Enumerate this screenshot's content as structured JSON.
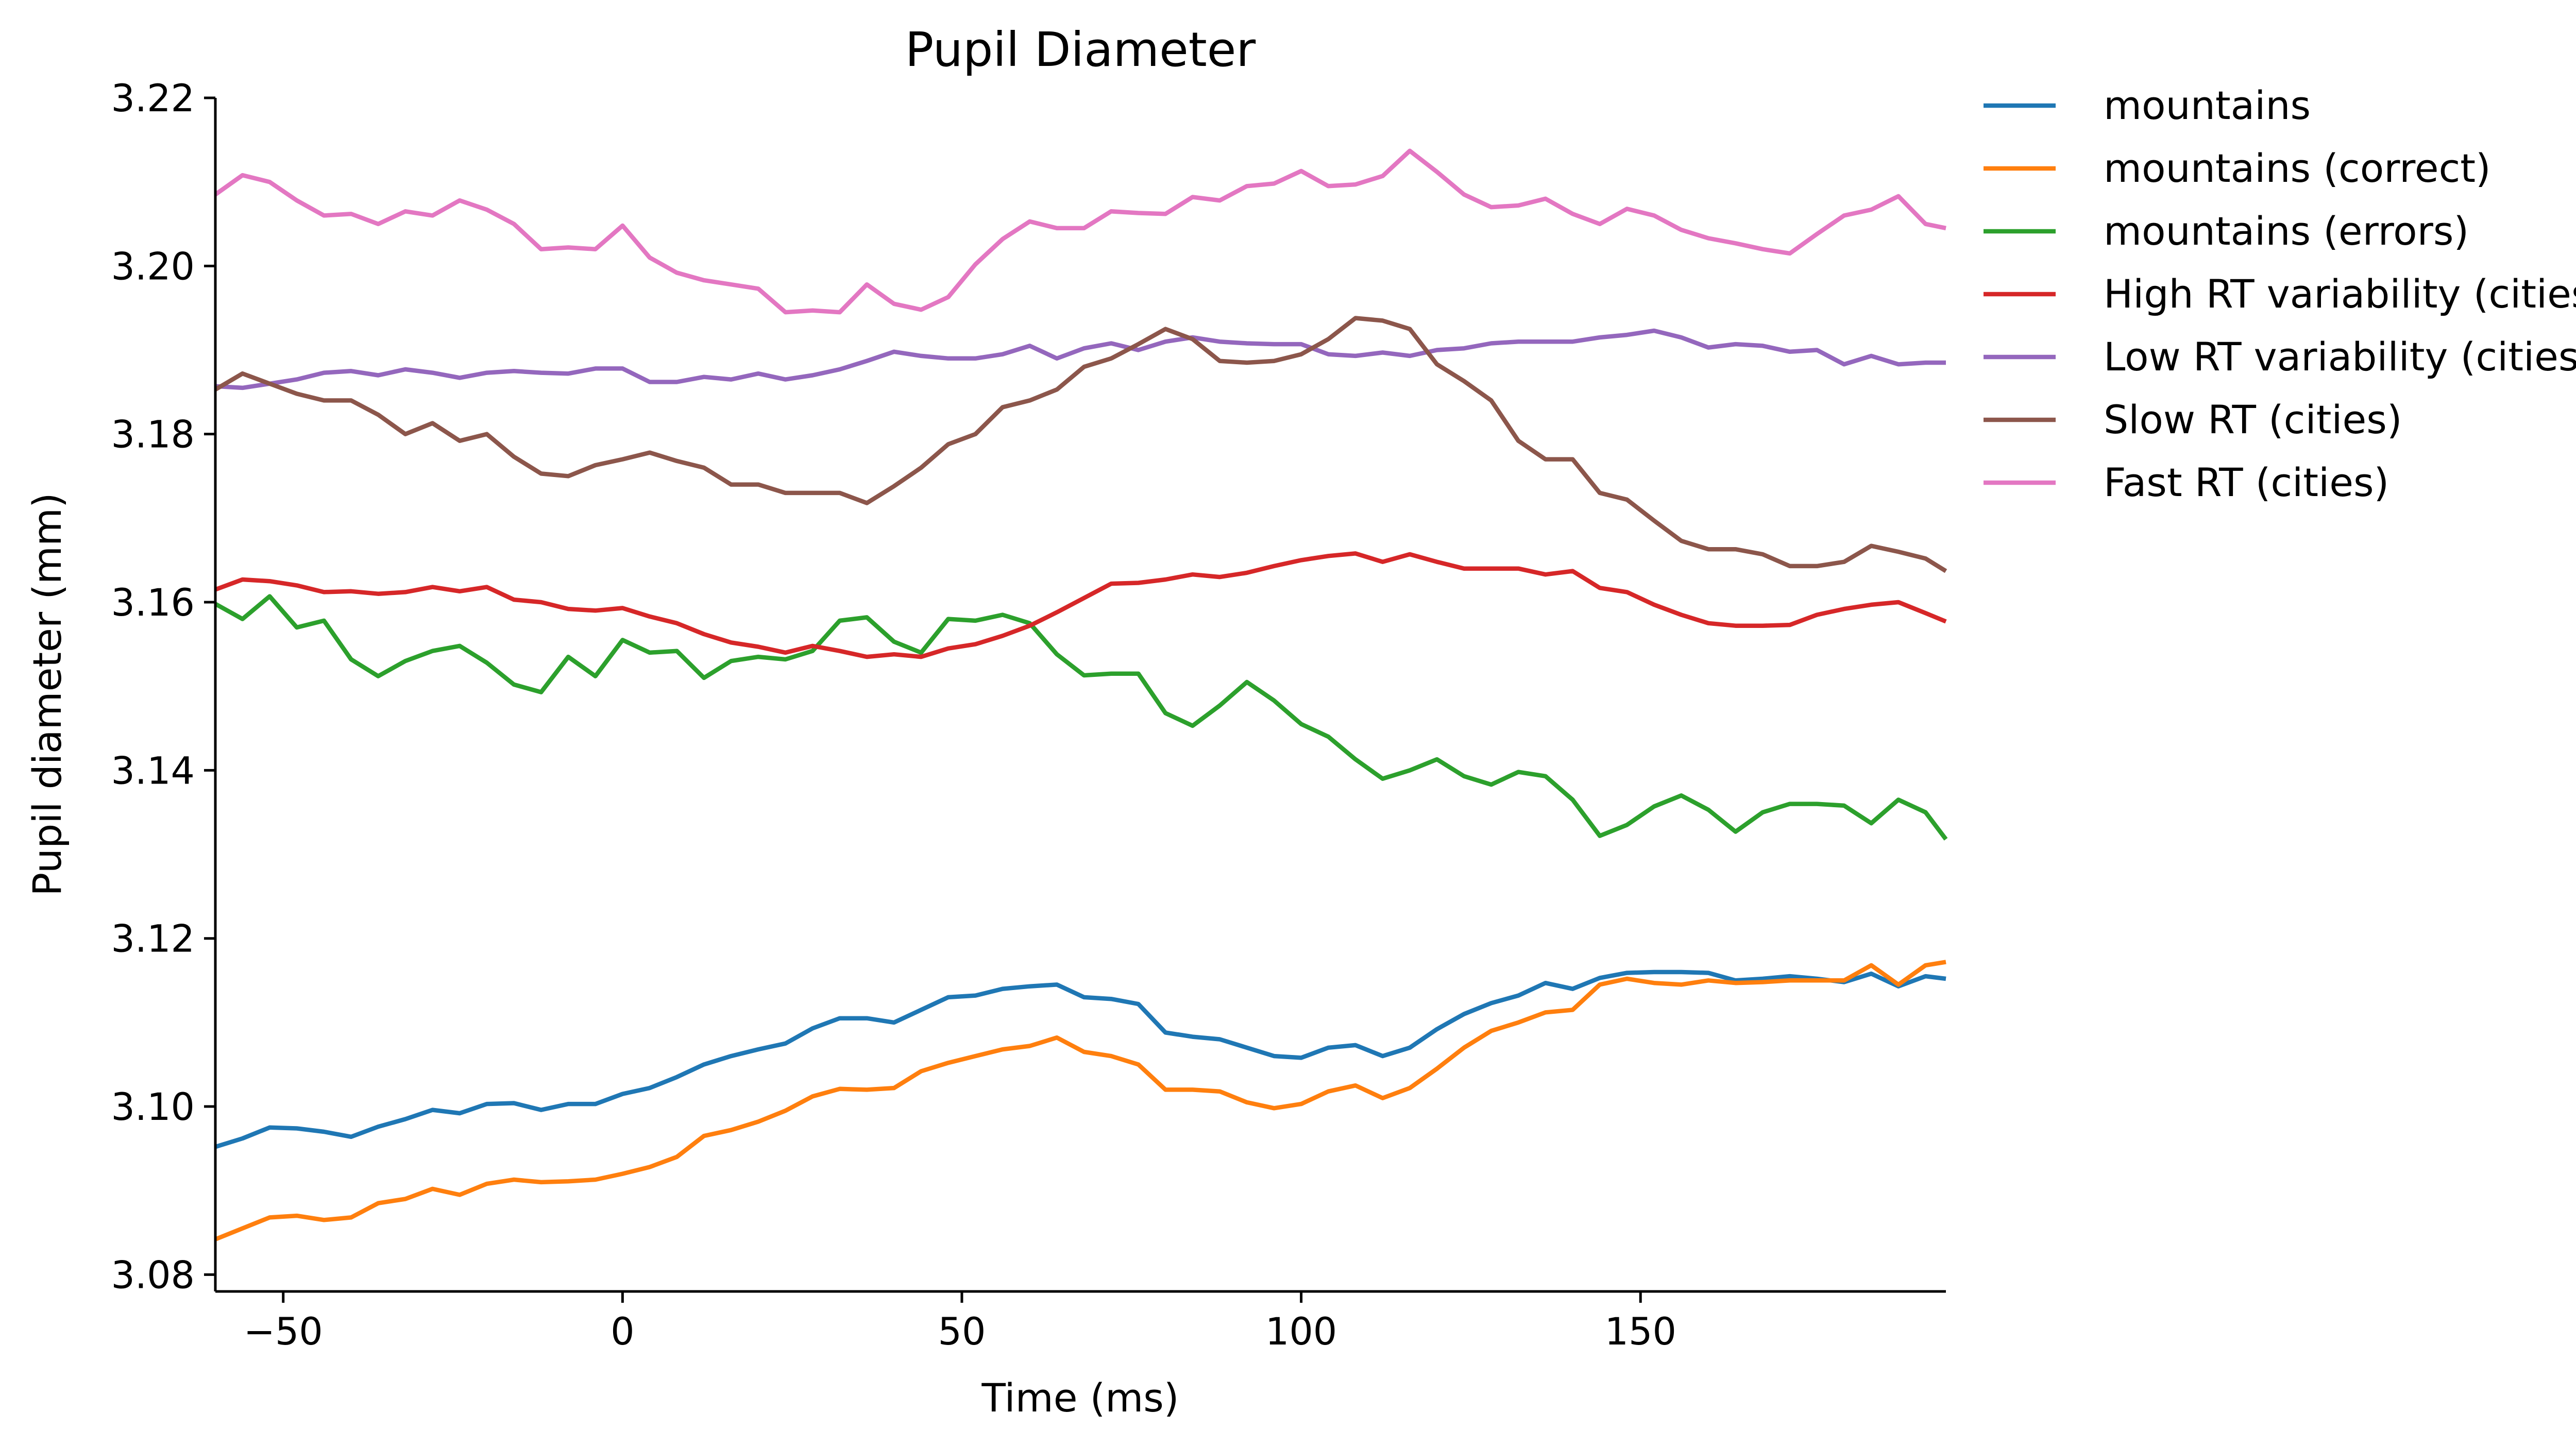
{
  "chart_data": {
    "type": "line",
    "title": "Pupil Diameter",
    "xlabel": "Time (ms)",
    "ylabel": "Pupil diameter (mm)",
    "xlim": [
      -60,
      195
    ],
    "ylim": [
      3.078,
      3.22
    ],
    "xticks": [
      -50,
      0,
      50,
      100,
      150
    ],
    "xtick_labels": [
      "−50",
      "0",
      "50",
      "100",
      "150"
    ],
    "yticks": [
      3.08,
      3.1,
      3.12,
      3.14,
      3.16,
      3.18,
      3.2,
      3.22
    ],
    "ytick_labels": [
      "3.08",
      "3.10",
      "3.12",
      "3.14",
      "3.16",
      "3.18",
      "3.20",
      "3.22"
    ],
    "grid": false,
    "legend_position": "outside-right",
    "x": [
      -60,
      -56,
      -52,
      -48,
      -44,
      -40,
      -36,
      -32,
      -28,
      -24,
      -20,
      -16,
      -12,
      -8,
      -4,
      0,
      4,
      8,
      12,
      16,
      20,
      24,
      28,
      32,
      36,
      40,
      44,
      48,
      52,
      56,
      60,
      64,
      68,
      72,
      76,
      80,
      84,
      88,
      92,
      96,
      100,
      104,
      108,
      112,
      116,
      120,
      124,
      128,
      132,
      136,
      140,
      144,
      148,
      152,
      156,
      160,
      164,
      168,
      172,
      176,
      180,
      184,
      188,
      192,
      196
    ],
    "series": [
      {
        "name": "mountains",
        "color": "#1f77b4",
        "values": [
          3.0952,
          3.0962,
          3.0975,
          3.0974,
          3.097,
          3.0964,
          3.0976,
          3.0985,
          3.0996,
          3.0992,
          3.1003,
          3.1004,
          3.0996,
          3.1003,
          3.1003,
          3.1015,
          3.1022,
          3.1035,
          3.105,
          3.106,
          3.1068,
          3.1075,
          3.1093,
          3.1105,
          3.1105,
          3.11,
          3.1115,
          3.113,
          3.1132,
          3.114,
          3.1143,
          3.1145,
          3.113,
          3.1128,
          3.1122,
          3.1088,
          3.1083,
          3.108,
          3.107,
          3.106,
          3.1058,
          3.107,
          3.1073,
          3.106,
          3.107,
          3.1092,
          3.111,
          3.1123,
          3.1132,
          3.1147,
          3.114,
          3.1153,
          3.1159,
          3.116,
          3.116,
          3.1159,
          3.115,
          3.1152,
          3.1155,
          3.1152,
          3.1148,
          3.1158,
          3.1143,
          3.1155,
          3.1152
        ]
      },
      {
        "name": "mountains (correct)",
        "color": "#ff7f0e",
        "values": [
          3.0842,
          3.0855,
          3.0868,
          3.087,
          3.0865,
          3.0868,
          3.0885,
          3.089,
          3.0902,
          3.0895,
          3.0908,
          3.0913,
          3.091,
          3.0911,
          3.0913,
          3.092,
          3.0928,
          3.094,
          3.0965,
          3.0972,
          3.0982,
          3.0995,
          3.1012,
          3.1021,
          3.102,
          3.1022,
          3.1042,
          3.1052,
          3.106,
          3.1068,
          3.1072,
          3.1082,
          3.1065,
          3.106,
          3.105,
          3.102,
          3.102,
          3.1018,
          3.1005,
          3.0998,
          3.1003,
          3.1018,
          3.1025,
          3.101,
          3.1022,
          3.1045,
          3.107,
          3.109,
          3.11,
          3.1112,
          3.1115,
          3.1145,
          3.1152,
          3.1147,
          3.1145,
          3.115,
          3.1147,
          3.1148,
          3.115,
          3.115,
          3.115,
          3.1168,
          3.1145,
          3.1168,
          3.1172
        ]
      },
      {
        "name": "mountains (errors)",
        "color": "#2ca02c",
        "values": [
          3.1598,
          3.158,
          3.1607,
          3.157,
          3.1578,
          3.1532,
          3.1512,
          3.153,
          3.1542,
          3.1548,
          3.1528,
          3.1502,
          3.1493,
          3.1535,
          3.1512,
          3.1555,
          3.154,
          3.1542,
          3.151,
          3.153,
          3.1535,
          3.1532,
          3.1542,
          3.1578,
          3.1582,
          3.1553,
          3.154,
          3.158,
          3.1578,
          3.1585,
          3.1575,
          3.1538,
          3.1513,
          3.1515,
          3.1515,
          3.1468,
          3.1453,
          3.1477,
          3.1505,
          3.1483,
          3.1455,
          3.144,
          3.1413,
          3.139,
          3.14,
          3.1413,
          3.1393,
          3.1383,
          3.1398,
          3.1393,
          3.1365,
          3.1322,
          3.1335,
          3.1357,
          3.137,
          3.1353,
          3.1327,
          3.135,
          3.136,
          3.136,
          3.1358,
          3.1337,
          3.1365,
          3.135,
          3.1318
        ]
      },
      {
        "name": "High RT variability (cities)",
        "color": "#d62728",
        "values": [
          3.1615,
          3.1627,
          3.1625,
          3.162,
          3.1612,
          3.1613,
          3.161,
          3.1612,
          3.1618,
          3.1613,
          3.1618,
          3.1603,
          3.16,
          3.1592,
          3.159,
          3.1593,
          3.1583,
          3.1575,
          3.1562,
          3.1552,
          3.1547,
          3.154,
          3.1548,
          3.1542,
          3.1535,
          3.1538,
          3.1535,
          3.1545,
          3.155,
          3.156,
          3.1572,
          3.1588,
          3.1605,
          3.1622,
          3.1623,
          3.1627,
          3.1633,
          3.163,
          3.1635,
          3.1643,
          3.165,
          3.1655,
          3.1658,
          3.1648,
          3.1657,
          3.1648,
          3.164,
          3.164,
          3.164,
          3.1633,
          3.1637,
          3.1617,
          3.1612,
          3.1597,
          3.1585,
          3.1575,
          3.1572,
          3.1572,
          3.1573,
          3.1585,
          3.1592,
          3.1597,
          3.16,
          3.1587,
          3.1577
        ]
      },
      {
        "name": "Low RT variability (cities)",
        "color": "#9467bd",
        "values": [
          3.1857,
          3.1855,
          3.186,
          3.1865,
          3.1873,
          3.1875,
          3.187,
          3.1877,
          3.1873,
          3.1867,
          3.1873,
          3.1875,
          3.1873,
          3.1872,
          3.1878,
          3.1878,
          3.1862,
          3.1862,
          3.1868,
          3.1865,
          3.1872,
          3.1865,
          3.187,
          3.1877,
          3.1887,
          3.1898,
          3.1893,
          3.189,
          3.189,
          3.1895,
          3.1905,
          3.189,
          3.1902,
          3.1908,
          3.19,
          3.191,
          3.1915,
          3.191,
          3.1908,
          3.1907,
          3.1907,
          3.1895,
          3.1893,
          3.1897,
          3.1893,
          3.19,
          3.1902,
          3.1908,
          3.191,
          3.191,
          3.191,
          3.1915,
          3.1918,
          3.1923,
          3.1915,
          3.1903,
          3.1907,
          3.1905,
          3.1898,
          3.19,
          3.1883,
          3.1893,
          3.1883,
          3.1885,
          3.1885
        ]
      },
      {
        "name": "Slow RT (cities)",
        "color": "#8c564b",
        "values": [
          3.1853,
          3.1872,
          3.186,
          3.1848,
          3.184,
          3.184,
          3.1823,
          3.18,
          3.1813,
          3.1792,
          3.18,
          3.1773,
          3.1753,
          3.175,
          3.1763,
          3.177,
          3.1778,
          3.1768,
          3.176,
          3.174,
          3.174,
          3.173,
          3.173,
          3.173,
          3.1718,
          3.1738,
          3.176,
          3.1788,
          3.18,
          3.1832,
          3.184,
          3.1853,
          3.188,
          3.189,
          3.1907,
          3.1925,
          3.1913,
          3.1887,
          3.1885,
          3.1887,
          3.1895,
          3.1913,
          3.1938,
          3.1935,
          3.1925,
          3.1883,
          3.1863,
          3.184,
          3.1792,
          3.177,
          3.177,
          3.173,
          3.1722,
          3.1697,
          3.1673,
          3.1663,
          3.1663,
          3.1657,
          3.1643,
          3.1643,
          3.1648,
          3.1667,
          3.166,
          3.1652,
          3.1637
        ]
      },
      {
        "name": "Fast RT (cities)",
        "color": "#e377c2",
        "values": [
          3.2085,
          3.2108,
          3.21,
          3.2078,
          3.206,
          3.2062,
          3.205,
          3.2065,
          3.206,
          3.2078,
          3.2067,
          3.205,
          3.202,
          3.2022,
          3.202,
          3.2048,
          3.201,
          3.1992,
          3.1983,
          3.1978,
          3.1973,
          3.1945,
          3.1947,
          3.1945,
          3.1978,
          3.1955,
          3.1948,
          3.1963,
          3.2002,
          3.2032,
          3.2053,
          3.2045,
          3.2045,
          3.2065,
          3.2063,
          3.2062,
          3.2082,
          3.2078,
          3.2095,
          3.2098,
          3.2113,
          3.2095,
          3.2097,
          3.2107,
          3.2137,
          3.2112,
          3.2085,
          3.207,
          3.2072,
          3.208,
          3.2062,
          3.205,
          3.2068,
          3.206,
          3.2043,
          3.2033,
          3.2027,
          3.202,
          3.2015,
          3.2038,
          3.206,
          3.2067,
          3.2083,
          3.205,
          3.2045
        ]
      }
    ]
  }
}
